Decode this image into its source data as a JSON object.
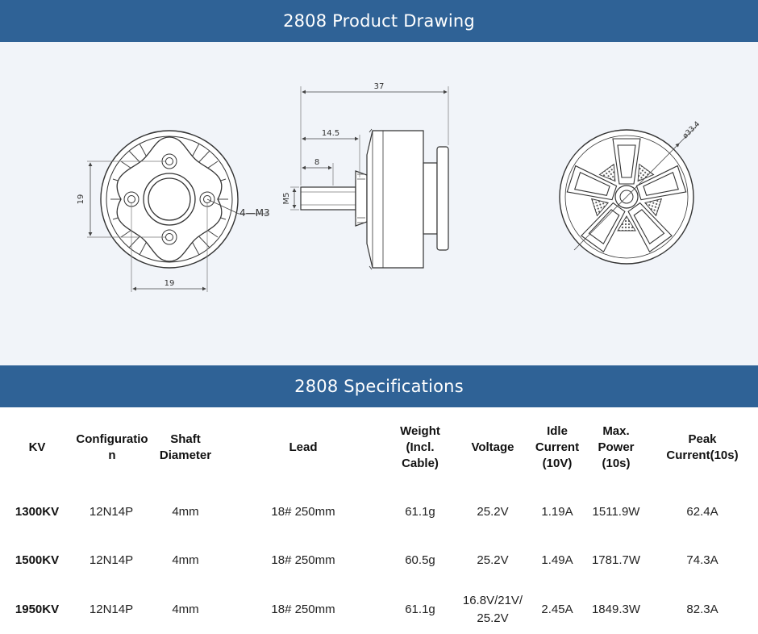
{
  "banners": {
    "drawing_title": "2808 Product Drawing",
    "specs_title": "2808 Specifications"
  },
  "drawing": {
    "front_view": {
      "dim_vertical": "19",
      "dim_horizontal": "19",
      "screw_label": "4—M3"
    },
    "side_view": {
      "dim_overall": "37",
      "dim_mid": "14.5",
      "dim_shaft": "8",
      "shaft_thread": "M5"
    },
    "back_view": {
      "dim_diameter": "ø33.4"
    }
  },
  "specs": {
    "headers": {
      "kv": "KV",
      "configuration": "Configuration",
      "shaft_diameter_line1": "Shaft",
      "shaft_diameter_line2": "Diameter",
      "lead": "Lead",
      "weight_line1": "Weight",
      "weight_line2": "(Incl.",
      "weight_line3": "Cable)",
      "voltage": "Voltage",
      "idle_line1": "Idle",
      "idle_line2": "Current",
      "idle_line3": "(10V)",
      "power_line1": "Max.",
      "power_line2": "Power",
      "power_line3": "(10s)",
      "peak_line1": "Peak",
      "peak_line2": "Current(10s)"
    },
    "rows": [
      {
        "kv": "1300KV",
        "configuration": "12N14P",
        "shaft": "4mm",
        "lead": "18# 250mm",
        "weight": "61.1g",
        "voltage": "25.2V",
        "idle": "1.19A",
        "power": "1511.9W",
        "peak": "62.4A"
      },
      {
        "kv": "1500KV",
        "configuration": "12N14P",
        "shaft": "4mm",
        "lead": "18# 250mm",
        "weight": "60.5g",
        "voltage": "25.2V",
        "idle": "1.49A",
        "power": "1781.7W",
        "peak": "74.3A"
      },
      {
        "kv": "1950KV",
        "configuration": "12N14P",
        "shaft": "4mm",
        "lead": "18# 250mm",
        "weight": "61.1g",
        "voltage": "16.8V/21V/ 25.2V",
        "idle": "2.45A",
        "power": "1849.3W",
        "peak": "82.3A"
      }
    ]
  }
}
